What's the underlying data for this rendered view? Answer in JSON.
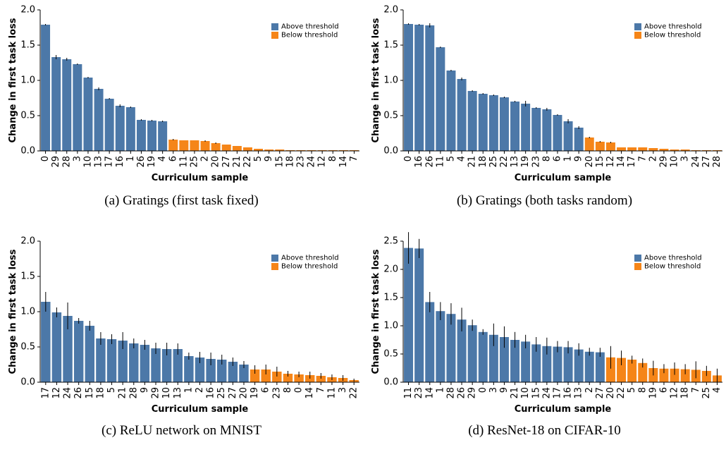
{
  "colors": {
    "above": "#4C78A8",
    "below": "#F58518",
    "error": "#000000"
  },
  "chart_data": [
    {
      "type": "bar",
      "caption": "(a) Gratings (first task fixed)",
      "xlabel": "Curriculum sample",
      "ylabel": "Change in first task loss",
      "ylim": [
        0,
        2.0
      ],
      "yticks": [
        "0.0",
        "0.5",
        "1.0",
        "1.5",
        "2.0"
      ],
      "legend": [
        "Above threshold",
        "Below threshold"
      ],
      "categories": [
        "0",
        "29",
        "28",
        "3",
        "10",
        "13",
        "17",
        "16",
        "1",
        "26",
        "19",
        "4",
        "6",
        "11",
        "25",
        "2",
        "20",
        "27",
        "21",
        "22",
        "5",
        "9",
        "15",
        "18",
        "23",
        "24",
        "12",
        "8",
        "14",
        "7"
      ],
      "values": [
        1.79,
        1.33,
        1.3,
        1.23,
        1.04,
        0.88,
        0.74,
        0.64,
        0.62,
        0.44,
        0.43,
        0.42,
        0.16,
        0.15,
        0.15,
        0.14,
        0.11,
        0.09,
        0.07,
        0.05,
        0.03,
        0.02,
        0.02,
        0.01,
        0.01,
        0.01,
        0.01,
        0.01,
        0.01,
        0.01
      ],
      "errors": [
        0.01,
        0.03,
        0.02,
        0.01,
        0.01,
        0.02,
        0.01,
        0.02,
        0.01,
        0.01,
        0.01,
        0.01,
        0.01,
        0,
        0,
        0.01,
        0.01,
        0,
        0,
        0,
        0,
        0,
        0,
        0,
        0,
        0,
        0,
        0,
        0,
        0
      ],
      "above_count": 12
    },
    {
      "type": "bar",
      "caption": "(b) Gratings (both tasks random)",
      "xlabel": "Curriculum sample",
      "ylabel": "Change in first task loss",
      "ylim": [
        0,
        2.0
      ],
      "yticks": [
        "0.0",
        "0.5",
        "1.0",
        "1.5",
        "2.0"
      ],
      "legend": [
        "Above threshold",
        "Below threshold"
      ],
      "categories": [
        "0",
        "16",
        "26",
        "11",
        "5",
        "4",
        "21",
        "18",
        "25",
        "22",
        "13",
        "19",
        "23",
        "8",
        "6",
        "1",
        "9",
        "20",
        "15",
        "12",
        "14",
        "17",
        "7",
        "2",
        "29",
        "10",
        "3",
        "24",
        "27",
        "28"
      ],
      "values": [
        1.8,
        1.79,
        1.78,
        1.47,
        1.14,
        1.02,
        0.85,
        0.81,
        0.79,
        0.76,
        0.7,
        0.67,
        0.61,
        0.59,
        0.51,
        0.42,
        0.33,
        0.19,
        0.13,
        0.12,
        0.05,
        0.05,
        0.05,
        0.04,
        0.03,
        0.02,
        0.02,
        0.01,
        0.01,
        0.01
      ],
      "errors": [
        0.01,
        0.01,
        0.03,
        0.01,
        0.01,
        0.02,
        0.01,
        0.01,
        0.01,
        0.01,
        0.01,
        0.04,
        0.01,
        0.02,
        0.01,
        0.03,
        0.02,
        0.01,
        0.01,
        0.01,
        0,
        0,
        0,
        0,
        0,
        0,
        0,
        0,
        0,
        0
      ],
      "above_count": 17
    },
    {
      "type": "bar",
      "caption": "(c) ReLU network on MNIST",
      "xlabel": "Curriculum sample",
      "ylabel": "Change in first task loss",
      "ylim": [
        0,
        2.0
      ],
      "yticks": [
        "0.0",
        "0.5",
        "1.0",
        "1.5",
        "2.0"
      ],
      "legend": [
        "Above threshold",
        "Below threshold"
      ],
      "categories": [
        "17",
        "12",
        "24",
        "26",
        "15",
        "18",
        "5",
        "21",
        "28",
        "9",
        "29",
        "10",
        "13",
        "1",
        "2",
        "16",
        "25",
        "27",
        "20",
        "19",
        "6",
        "23",
        "8",
        "0",
        "14",
        "7",
        "11",
        "3",
        "22"
      ],
      "values": [
        1.14,
        0.99,
        0.94,
        0.87,
        0.8,
        0.62,
        0.61,
        0.59,
        0.55,
        0.53,
        0.48,
        0.47,
        0.47,
        0.37,
        0.35,
        0.33,
        0.32,
        0.29,
        0.25,
        0.18,
        0.18,
        0.15,
        0.12,
        0.11,
        0.1,
        0.09,
        0.07,
        0.06,
        0.03
      ],
      "errors": [
        0.14,
        0.07,
        0.19,
        0.04,
        0.07,
        0.09,
        0.07,
        0.12,
        0.07,
        0.07,
        0.08,
        0.09,
        0.08,
        0.05,
        0.08,
        0.09,
        0.07,
        0.06,
        0.05,
        0.06,
        0.07,
        0.07,
        0.04,
        0.04,
        0.05,
        0.04,
        0.04,
        0.04,
        0.02
      ],
      "above_count": 19
    },
    {
      "type": "bar",
      "caption": "(d) ResNet-18 on CIFAR-10",
      "xlabel": "Curriculum sample",
      "ylabel": "Change in first task loss",
      "ylim": [
        0,
        2.5
      ],
      "yticks": [
        "0.0",
        "0.5",
        "1.0",
        "1.5",
        "2.0",
        "2.5"
      ],
      "legend": [
        "Above threshold",
        "Below threshold"
      ],
      "categories": [
        "11",
        "23",
        "14",
        "1",
        "28",
        "26",
        "29",
        "0",
        "3",
        "9",
        "21",
        "10",
        "15",
        "24",
        "17",
        "16",
        "13",
        "2",
        "27",
        "20",
        "22",
        "5",
        "8",
        "19",
        "6",
        "12",
        "18",
        "7",
        "25",
        "4"
      ],
      "values": [
        2.38,
        2.37,
        1.42,
        1.26,
        1.21,
        1.11,
        1.01,
        0.89,
        0.84,
        0.8,
        0.75,
        0.72,
        0.67,
        0.64,
        0.63,
        0.62,
        0.58,
        0.54,
        0.53,
        0.44,
        0.43,
        0.4,
        0.34,
        0.25,
        0.24,
        0.24,
        0.23,
        0.22,
        0.2,
        0.12
      ],
      "errors": [
        0.28,
        0.17,
        0.18,
        0.16,
        0.19,
        0.21,
        0.1,
        0.05,
        0.2,
        0.19,
        0.14,
        0.12,
        0.13,
        0.15,
        0.1,
        0.11,
        0.11,
        0.07,
        0.08,
        0.2,
        0.13,
        0.07,
        0.08,
        0.13,
        0.08,
        0.11,
        0.09,
        0.15,
        0.09,
        0.12
      ],
      "above_count": 19
    }
  ]
}
